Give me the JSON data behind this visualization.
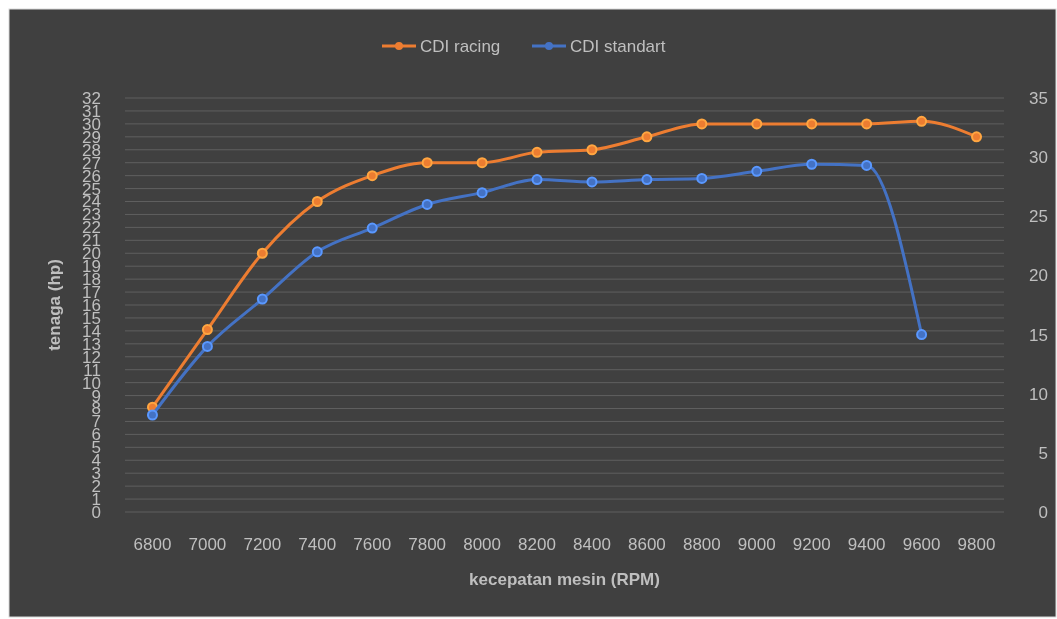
{
  "chart_data": {
    "type": "line",
    "xlabel": "kecepatan mesin (RPM)",
    "ylabel": "tenaga (hp)",
    "categories": [
      "6800",
      "7000",
      "7200",
      "7400",
      "7600",
      "7800",
      "8000",
      "8200",
      "8400",
      "8600",
      "8800",
      "9000",
      "9200",
      "9400",
      "9600",
      "9800"
    ],
    "series": [
      {
        "name": "CDI racing",
        "color": "#ed7d31",
        "values": [
          8.1,
          14.1,
          20,
          24,
          26,
          27,
          27,
          27.8,
          28,
          29,
          30,
          30,
          30,
          30,
          30.2,
          29
        ]
      },
      {
        "name": "CDI standart",
        "color": "#4472c4",
        "axis": "y2",
        "values": [
          8.2,
          14,
          18,
          22,
          24,
          26,
          27,
          28.1,
          27.9,
          28.1,
          28.2,
          28.8,
          29.4,
          29.3,
          15,
          null
        ]
      }
    ],
    "ylim": [
      0,
      32
    ],
    "yticks": [
      0,
      1,
      2,
      3,
      4,
      5,
      6,
      7,
      8,
      9,
      10,
      11,
      12,
      13,
      14,
      15,
      16,
      17,
      18,
      19,
      20,
      21,
      22,
      23,
      24,
      25,
      26,
      27,
      28,
      29,
      30,
      31,
      32
    ],
    "y2lim": [
      0,
      35
    ],
    "y2ticks": [
      0,
      5,
      10,
      15,
      20,
      25,
      30,
      35
    ],
    "grid": "y",
    "legend": "top",
    "marker": "circle",
    "line_style": "solid"
  }
}
